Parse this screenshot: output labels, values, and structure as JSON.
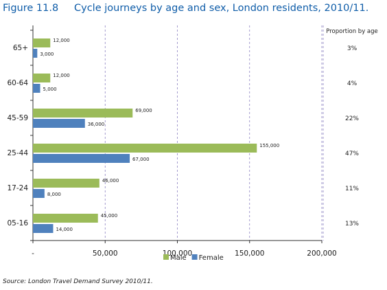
{
  "figure": {
    "label": "Figure 11.8",
    "title": "Cycle journeys by age and sex, London residents, 2010/11.",
    "source": "Source: London Travel Demand Survey 2010/11."
  },
  "chart_data": {
    "type": "bar",
    "orientation": "horizontal",
    "categories": [
      "65+",
      "60-64",
      "45-59",
      "25-44",
      "17-24",
      "05-16"
    ],
    "series": [
      {
        "name": "Male",
        "color": "#9bbb59",
        "values": [
          12000,
          12000,
          69000,
          155000,
          46000,
          45000
        ],
        "labels": [
          "12,000",
          "12,000",
          "69,000",
          "155,000",
          "46,000",
          "45,000"
        ]
      },
      {
        "name": "Female",
        "color": "#4f81bd",
        "values": [
          3000,
          5000,
          36000,
          67000,
          8000,
          14000
        ],
        "labels": [
          "3,000",
          "5,000",
          "36,000",
          "67,000",
          "8,000",
          "14,000"
        ]
      }
    ],
    "xlim": [
      0,
      200000
    ],
    "xticks": [
      0,
      50000,
      100000,
      150000,
      200000
    ],
    "xtick_labels": [
      "-",
      "50,000",
      "100,000",
      "150,000",
      "200,000"
    ],
    "grid": "vertical dashed",
    "legend": "bottom-center",
    "proportion_header": "Proportion by age",
    "proportions": [
      "3%",
      "4%",
      "22%",
      "47%",
      "11%",
      "13%"
    ]
  }
}
